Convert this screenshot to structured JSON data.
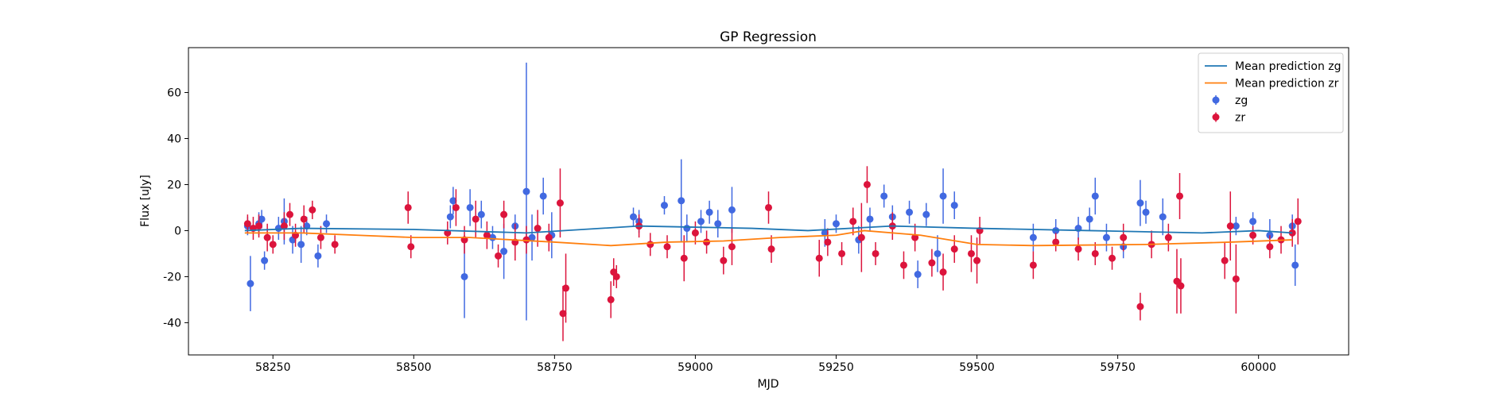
{
  "chart_data": {
    "type": "errorbar",
    "title": "GP Regression",
    "xlabel": "MJD",
    "ylabel": "Flux [uJy]",
    "xlim": [
      58100,
      60160
    ],
    "ylim": [
      -54,
      79.5
    ],
    "xticks": [
      58250,
      58500,
      58750,
      59000,
      59250,
      59500,
      59750,
      60000
    ],
    "yticks": [
      -40,
      -20,
      0,
      20,
      40,
      60
    ],
    "legend": "upper right",
    "series": [
      {
        "name": "Mean prediction zg",
        "mode": "line",
        "color": "#1f77b4",
        "x": [
          58200,
          58300,
          58500,
          58700,
          58900,
          59100,
          59200,
          59350,
          59500,
          59700,
          59900,
          60000,
          60060
        ],
        "values": [
          0,
          1,
          0.5,
          -1,
          2,
          1,
          0,
          2,
          1,
          0,
          -1,
          0,
          -1
        ]
      },
      {
        "name": "Mean prediction zr",
        "mode": "line",
        "color": "#ff7f0e",
        "x": [
          58200,
          58300,
          58400,
          58500,
          58600,
          58750,
          58850,
          58950,
          59050,
          59150,
          59250,
          59300,
          59400,
          59500,
          59600,
          59800,
          59950,
          60060
        ],
        "values": [
          -1,
          -1,
          -2,
          -3,
          -3,
          -5,
          -6.5,
          -5,
          -4.5,
          -3,
          -2,
          0,
          -2,
          -6,
          -6.5,
          -6,
          -5,
          -4
        ]
      },
      {
        "name": "zg",
        "mode": "points",
        "color": "#4169e1",
        "x": [
          58210,
          58205,
          58230,
          58235,
          58225,
          58260,
          58270,
          58285,
          58300,
          58310,
          58330,
          58345,
          58565,
          58570,
          58590,
          58600,
          58620,
          58640,
          58660,
          58680,
          58700,
          58710,
          58730,
          58745,
          58890,
          58900,
          58945,
          58975,
          58985,
          59010,
          59025,
          59040,
          59065,
          59230,
          59250,
          59290,
          59310,
          59335,
          59350,
          59380,
          59395,
          59410,
          59430,
          59440,
          59460,
          59600,
          59640,
          59680,
          59700,
          59710,
          59730,
          59760,
          59790,
          59800,
          59830,
          59960,
          59990,
          60020,
          60060,
          60065
        ],
        "values": [
          -23,
          2,
          5,
          -13,
          3,
          1,
          4,
          -4,
          -6,
          2,
          -11,
          3,
          6,
          13,
          -20,
          10,
          7,
          -3,
          -9,
          2,
          17,
          -3,
          15,
          -2,
          6,
          4,
          11,
          13,
          1,
          4,
          8,
          3,
          9,
          -1,
          3,
          -4,
          5,
          15,
          6,
          8,
          -19,
          7,
          -10,
          15,
          11,
          -3,
          0,
          1,
          5,
          15,
          -3,
          -7,
          12,
          8,
          6,
          2,
          4,
          -2,
          2,
          -15
        ],
        "errors": [
          12,
          4,
          4,
          4,
          5,
          5,
          10,
          6,
          8,
          4,
          5,
          4,
          5,
          6,
          18,
          8,
          6,
          5,
          12,
          5,
          56,
          10,
          8,
          10,
          4,
          5,
          4,
          18,
          6,
          5,
          5,
          6,
          10,
          6,
          4,
          6,
          5,
          5,
          5,
          5,
          6,
          5,
          8,
          12,
          6,
          6,
          5,
          5,
          5,
          8,
          6,
          5,
          10,
          5,
          8,
          4,
          4,
          7,
          5,
          9
        ]
      },
      {
        "name": "zr",
        "mode": "points",
        "color": "#dc143c",
        "x": [
          58205,
          58215,
          58225,
          58240,
          58250,
          58270,
          58280,
          58290,
          58305,
          58320,
          58335,
          58360,
          58490,
          58495,
          58560,
          58575,
          58590,
          58610,
          58630,
          58650,
          58660,
          58680,
          58700,
          58720,
          58740,
          58760,
          58765,
          58770,
          58850,
          58855,
          58860,
          58900,
          58920,
          58950,
          58980,
          59000,
          59020,
          59050,
          59065,
          59130,
          59135,
          59220,
          59235,
          59260,
          59280,
          59295,
          59305,
          59320,
          59350,
          59370,
          59390,
          59420,
          59440,
          59460,
          59490,
          59500,
          59505,
          59600,
          59640,
          59680,
          59710,
          59740,
          59760,
          59790,
          59810,
          59840,
          59855,
          59860,
          59862,
          59940,
          59950,
          59960,
          59990,
          60020,
          60040,
          60060,
          60070
        ],
        "values": [
          3,
          1,
          2,
          -3,
          -6,
          2,
          7,
          -2,
          5,
          9,
          -3,
          -6,
          10,
          -7,
          -1,
          10,
          -4,
          5,
          -2,
          -11,
          7,
          -5,
          -4,
          1,
          -3,
          12,
          -36,
          -25,
          -30,
          -18,
          -20,
          2,
          -6,
          -7,
          -12,
          -1,
          -5,
          -13,
          -7,
          10,
          -8,
          -12,
          -5,
          -10,
          4,
          -3,
          20,
          -10,
          2,
          -15,
          -3,
          -14,
          -18,
          -8,
          -10,
          -13,
          0,
          -15,
          -5,
          -8,
          -10,
          -12,
          -3,
          -33,
          -6,
          -3,
          -22,
          15,
          -24,
          -13,
          2,
          -21,
          -2,
          -7,
          -4,
          -1,
          4
        ],
        "errors": [
          4,
          5,
          5,
          6,
          4,
          6,
          5,
          5,
          6,
          4,
          5,
          4,
          7,
          5,
          5,
          8,
          6,
          8,
          6,
          5,
          6,
          8,
          6,
          8,
          6,
          15,
          12,
          15,
          8,
          6,
          5,
          5,
          5,
          5,
          10,
          5,
          5,
          6,
          8,
          7,
          6,
          8,
          6,
          5,
          6,
          15,
          8,
          5,
          6,
          6,
          6,
          6,
          8,
          6,
          8,
          10,
          6,
          6,
          4,
          5,
          5,
          5,
          6,
          6,
          6,
          6,
          14,
          10,
          12,
          8,
          15,
          15,
          4,
          5,
          6,
          6,
          10
        ]
      }
    ]
  }
}
